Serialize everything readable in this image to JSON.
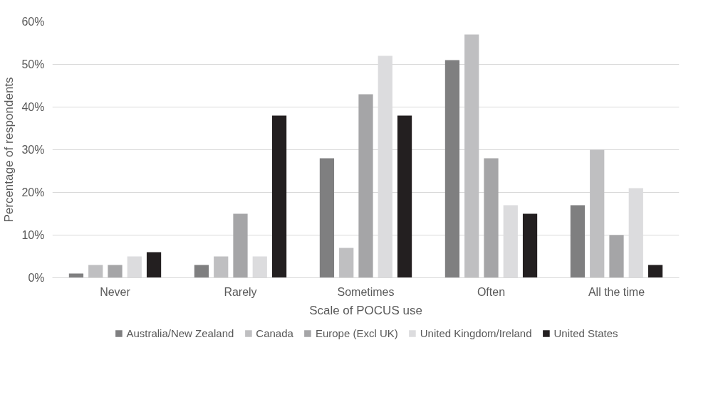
{
  "chart_data": {
    "type": "bar",
    "xlabel": "Scale of POCUS use",
    "ylabel": "Percentage of respondents",
    "categories": [
      "Never",
      "Rarely",
      "Sometimes",
      "Often",
      "All the time"
    ],
    "series": [
      {
        "name": "Australia/New Zealand",
        "color": "#7f7f80",
        "values": [
          1,
          3,
          28,
          51,
          17
        ]
      },
      {
        "name": "Canada",
        "color": "#bfbfc1",
        "values": [
          3,
          5,
          7,
          57,
          30
        ]
      },
      {
        "name": "Europe (Excl UK)",
        "color": "#a5a5a7",
        "values": [
          3,
          15,
          43,
          28,
          10
        ]
      },
      {
        "name": "United Kingdom/Ireland",
        "color": "#dcdcde",
        "values": [
          5,
          5,
          52,
          17,
          21
        ]
      },
      {
        "name": "United States",
        "color": "#231f20",
        "values": [
          6,
          38,
          38,
          15,
          3
        ]
      }
    ],
    "ylim": [
      0,
      60
    ],
    "yticks": [
      {
        "value": 0,
        "label": "0%"
      },
      {
        "value": 10,
        "label": "10%"
      },
      {
        "value": 20,
        "label": "20%"
      },
      {
        "value": 30,
        "label": "30%"
      },
      {
        "value": 40,
        "label": "40%"
      },
      {
        "value": 50,
        "label": "50%"
      },
      {
        "value": 60,
        "label": "60%"
      }
    ],
    "grid": "y",
    "legend": "bottom"
  }
}
